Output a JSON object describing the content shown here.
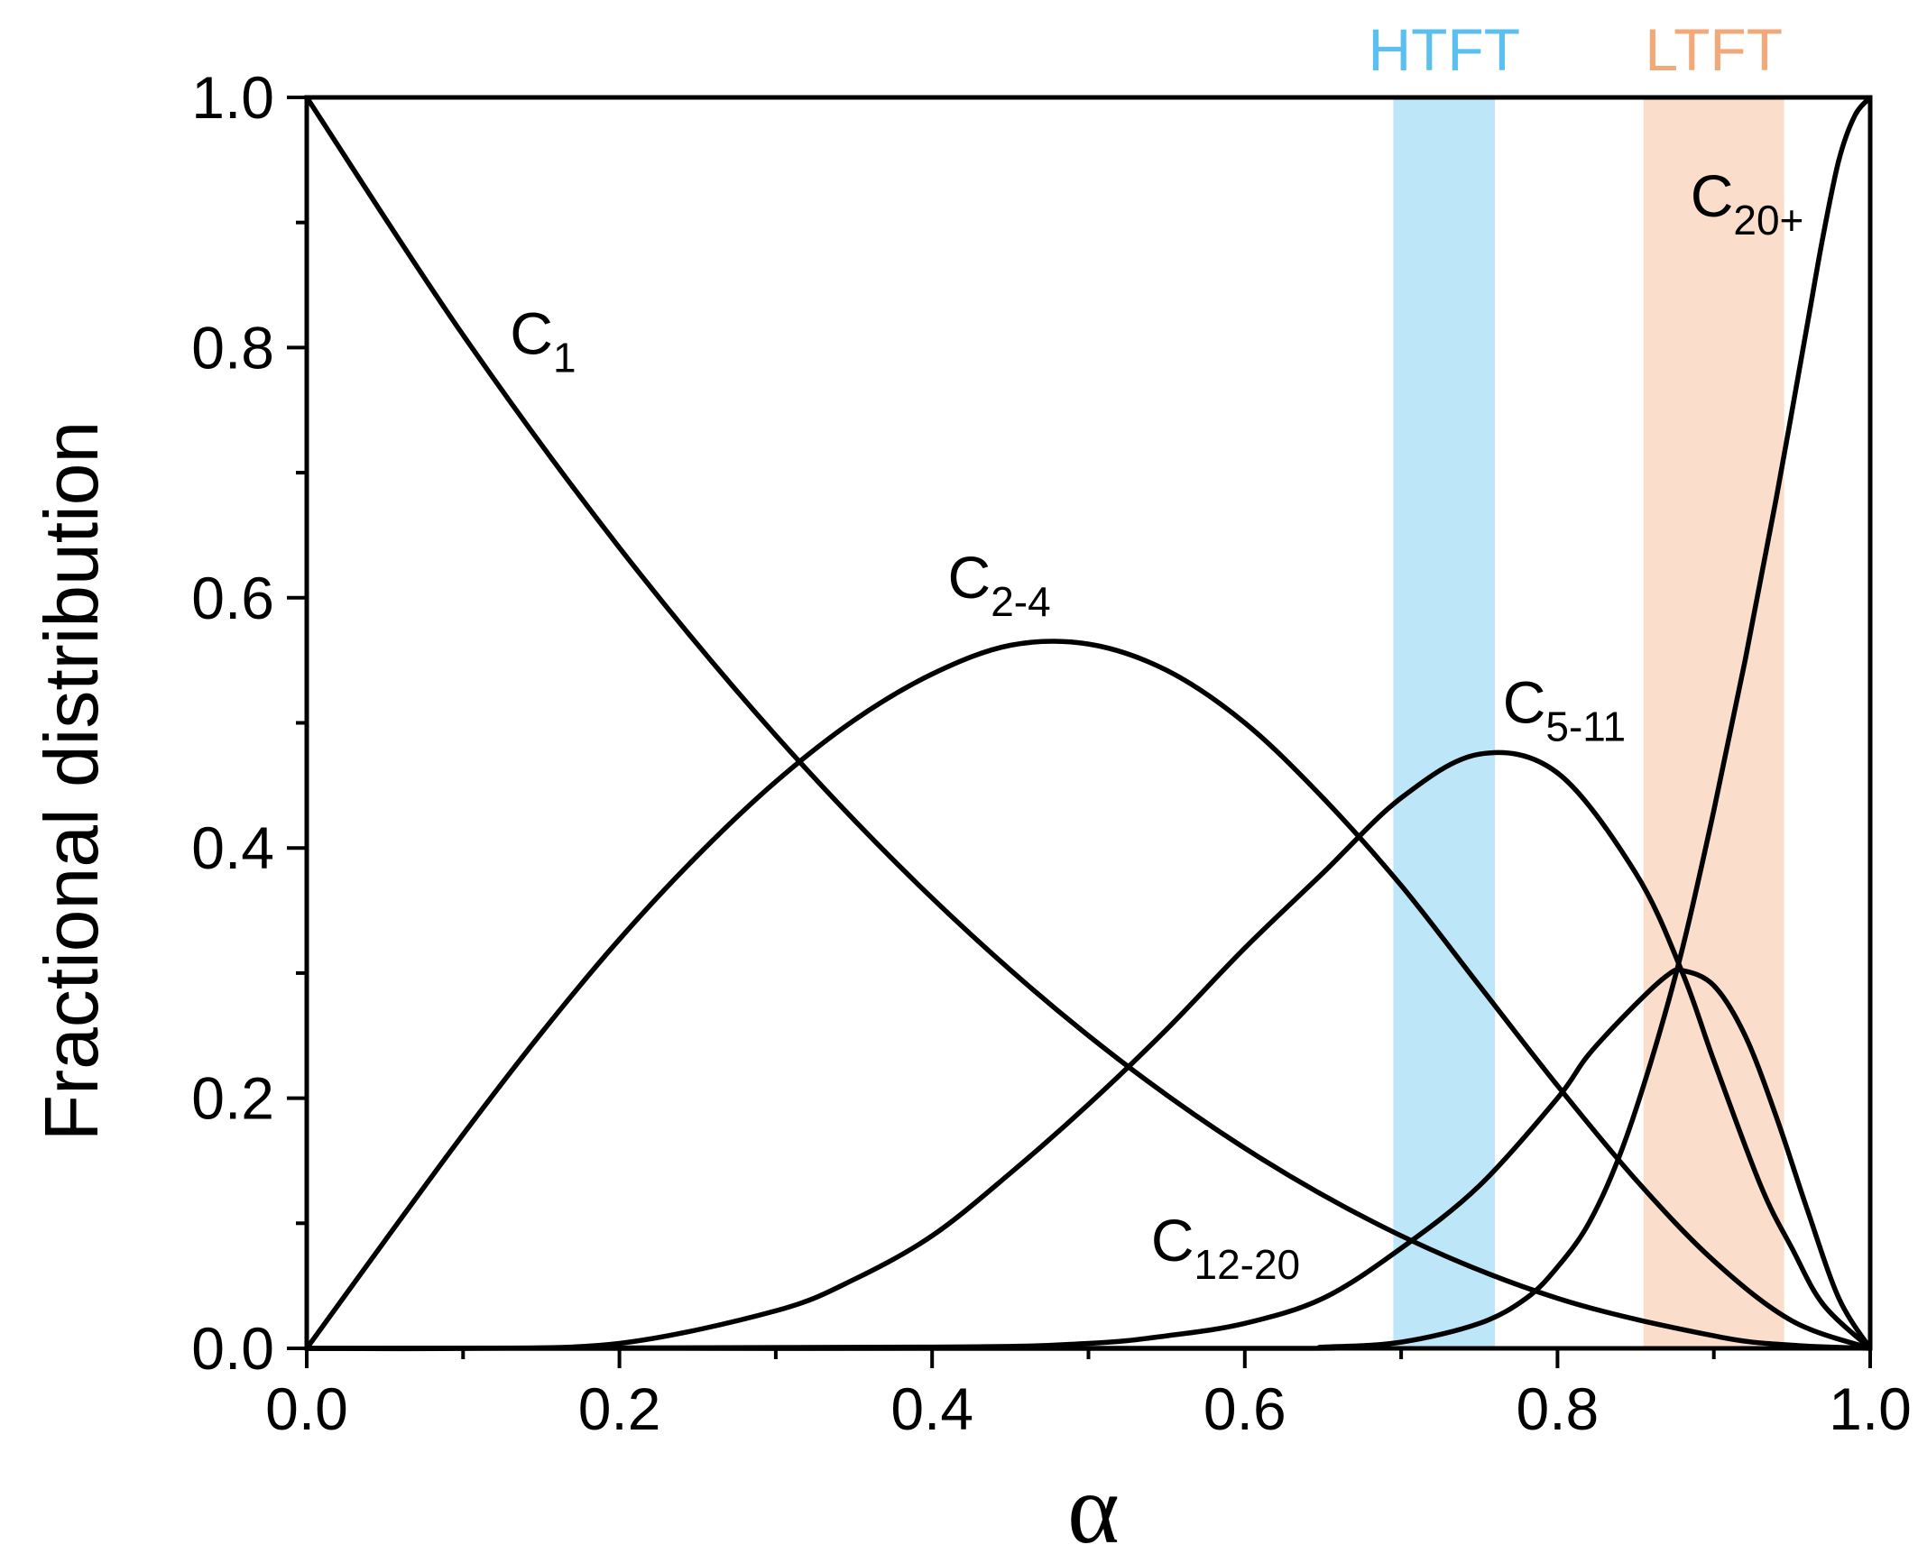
{
  "chart_data": {
    "type": "line",
    "xlabel": "α",
    "ylabel": "Fractional distribution",
    "xlim": [
      0.0,
      1.0
    ],
    "ylim": [
      0.0,
      1.0
    ],
    "x_ticks": [
      "0.0",
      "0.2",
      "0.4",
      "0.6",
      "0.8",
      "1.0"
    ],
    "y_ticks": [
      "0.0",
      "0.2",
      "0.4",
      "0.6",
      "0.8",
      "1.0"
    ],
    "grid": false,
    "bands": [
      {
        "label": "HTFT",
        "x_start": 0.695,
        "x_end": 0.76,
        "color": "#5bc0f0"
      },
      {
        "label": "LTFT",
        "x_start": 0.855,
        "x_end": 0.945,
        "color": "#f2a97a"
      }
    ],
    "series": [
      {
        "label_main": "C",
        "label_sub": "1",
        "label_at": [
          0.13,
          0.795
        ],
        "x": [
          0.0,
          0.1,
          0.2,
          0.3,
          0.4,
          0.5,
          0.6,
          0.7,
          0.8,
          0.9,
          0.95,
          1.0
        ],
        "y": [
          1.0,
          0.81,
          0.64,
          0.49,
          0.36,
          0.25,
          0.16,
          0.09,
          0.04,
          0.01,
          0.0025,
          0.0
        ]
      },
      {
        "label_main": "C",
        "label_sub": "2-4",
        "label_at": [
          0.41,
          0.6
        ],
        "x": [
          0.0,
          0.05,
          0.1,
          0.15,
          0.2,
          0.25,
          0.3,
          0.35,
          0.4,
          0.45,
          0.5,
          0.55,
          0.6,
          0.65,
          0.7,
          0.75,
          0.8,
          0.85,
          0.9,
          0.95,
          1.0
        ],
        "y": [
          0.0,
          0.086,
          0.171,
          0.252,
          0.327,
          0.394,
          0.453,
          0.502,
          0.539,
          0.562,
          0.563,
          0.542,
          0.5,
          0.44,
          0.37,
          0.29,
          0.21,
          0.135,
          0.07,
          0.022,
          0.0
        ]
      },
      {
        "label_main": "C",
        "label_sub": "5-11",
        "label_at": [
          0.765,
          0.5
        ],
        "x": [
          0.0,
          0.1,
          0.2,
          0.3,
          0.35,
          0.4,
          0.45,
          0.5,
          0.55,
          0.6,
          0.65,
          0.7,
          0.75,
          0.8,
          0.85,
          0.88,
          0.9,
          0.93,
          0.95,
          0.97,
          1.0
        ],
        "y": [
          0.0,
          0.0,
          0.004,
          0.03,
          0.055,
          0.09,
          0.14,
          0.195,
          0.255,
          0.32,
          0.38,
          0.44,
          0.475,
          0.46,
          0.38,
          0.3,
          0.23,
          0.13,
          0.08,
          0.035,
          0.0
        ]
      },
      {
        "label_main": "C",
        "label_sub": "12-20",
        "label_at": [
          0.54,
          0.07
        ],
        "x": [
          0.0,
          0.4,
          0.5,
          0.55,
          0.6,
          0.65,
          0.7,
          0.75,
          0.8,
          0.82,
          0.85,
          0.87,
          0.88,
          0.9,
          0.92,
          0.94,
          0.96,
          0.98,
          1.0
        ],
        "y": [
          0.0,
          0.001,
          0.004,
          0.01,
          0.02,
          0.04,
          0.08,
          0.13,
          0.2,
          0.235,
          0.275,
          0.298,
          0.302,
          0.29,
          0.25,
          0.185,
          0.11,
          0.04,
          0.0
        ]
      },
      {
        "label_main": "C",
        "label_sub": "20+",
        "label_at": [
          0.885,
          0.905
        ],
        "x": [
          0.0,
          0.6,
          0.65,
          0.7,
          0.75,
          0.78,
          0.8,
          0.82,
          0.84,
          0.86,
          0.88,
          0.9,
          0.92,
          0.94,
          0.96,
          0.97,
          0.98,
          0.99,
          1.0
        ],
        "y": [
          0.0,
          0.0,
          0.001,
          0.005,
          0.02,
          0.04,
          0.065,
          0.1,
          0.155,
          0.23,
          0.32,
          0.43,
          0.55,
          0.68,
          0.82,
          0.89,
          0.95,
          0.985,
          1.0
        ]
      }
    ]
  }
}
